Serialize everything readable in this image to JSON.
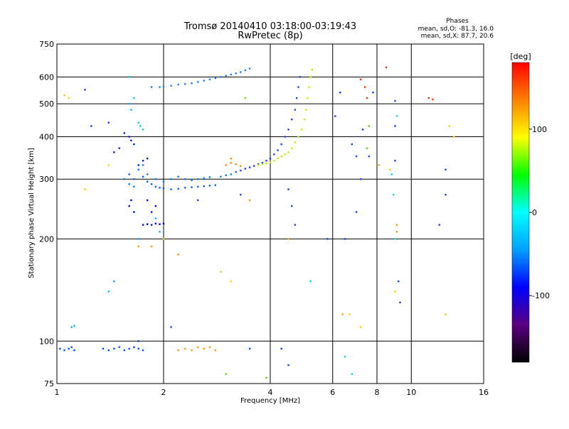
{
  "chart_data": {
    "type": "scatter",
    "title": "Tromsø 20140410 03:18:00-03:19:43",
    "subtitle": "RwPretec (8p)",
    "xlabel": "Frequency [MHz]",
    "ylabel": "Stationary phase Virtual Height [km]",
    "xscale": "log",
    "yscale": "log",
    "xlim": [
      1,
      16
    ],
    "ylim": [
      75,
      750
    ],
    "xticks": [
      1,
      2,
      4,
      6,
      8,
      10,
      16
    ],
    "yticks": [
      75,
      100,
      200,
      300,
      400,
      500,
      600,
      750
    ],
    "grid": true,
    "stats": {
      "title": "Phases",
      "line_o": "mean, sd,O: -81.3, 16.0",
      "line_x": "mean, sd,X:  87.7, 20.6"
    },
    "colorbar": {
      "label": "[deg]",
      "range": [
        -180,
        180
      ],
      "ticks": [
        100,
        0,
        -100
      ],
      "colors": [
        "#000000",
        "#5a0080",
        "#0000ff",
        "#00a0ff",
        "#00ffff",
        "#00ff00",
        "#ffff00",
        "#ff8000",
        "#ff0000"
      ]
    },
    "series": [
      {
        "color": "#0050ff",
        "points": [
          [
            1.02,
            95
          ],
          [
            1.05,
            94
          ],
          [
            1.08,
            95
          ],
          [
            1.1,
            96
          ],
          [
            1.12,
            94
          ],
          [
            1.35,
            95
          ],
          [
            1.4,
            94
          ],
          [
            1.45,
            95
          ],
          [
            1.5,
            96
          ],
          [
            1.55,
            94
          ],
          [
            1.6,
            95
          ],
          [
            1.65,
            96
          ],
          [
            1.7,
            95
          ],
          [
            1.75,
            94
          ]
        ]
      },
      {
        "color": "#ff9900",
        "points": [
          [
            2.2,
            94
          ],
          [
            2.3,
            95
          ],
          [
            2.4,
            94
          ],
          [
            2.5,
            96
          ],
          [
            2.6,
            95
          ],
          [
            2.7,
            96
          ],
          [
            2.8,
            94
          ]
        ]
      },
      {
        "color": "#0000ff",
        "points": [
          [
            1.85,
            220
          ],
          [
            1.9,
            222
          ],
          [
            1.95,
            221
          ],
          [
            2.0,
            222
          ],
          [
            1.75,
            220
          ],
          [
            1.8,
            221
          ],
          [
            1.6,
            250
          ],
          [
            1.62,
            260
          ],
          [
            1.65,
            240
          ],
          [
            1.8,
            260
          ],
          [
            1.85,
            240
          ],
          [
            1.9,
            250
          ]
        ]
      },
      {
        "color": "#0060ff",
        "points": [
          [
            1.6,
            310
          ],
          [
            1.65,
            300
          ],
          [
            1.7,
            320
          ],
          [
            1.75,
            305
          ],
          [
            1.8,
            295
          ],
          [
            1.85,
            290
          ],
          [
            1.9,
            285
          ],
          [
            1.95,
            283
          ],
          [
            2.0,
            282
          ],
          [
            2.1,
            280
          ],
          [
            2.2,
            281
          ],
          [
            2.3,
            283
          ],
          [
            2.4,
            284
          ],
          [
            2.5,
            285
          ],
          [
            2.6,
            286
          ],
          [
            2.7,
            287
          ],
          [
            2.8,
            288
          ]
        ]
      },
      {
        "color": "#0080ff",
        "points": [
          [
            1.55,
            300
          ],
          [
            1.6,
            290
          ],
          [
            1.65,
            285
          ],
          [
            1.7,
            320
          ],
          [
            1.75,
            330
          ],
          [
            1.8,
            310
          ],
          [
            1.9,
            300
          ],
          [
            2.0,
            295
          ],
          [
            2.1,
            300
          ],
          [
            2.2,
            305
          ],
          [
            2.3,
            300
          ],
          [
            2.4,
            298
          ],
          [
            2.5,
            300
          ],
          [
            2.6,
            302
          ],
          [
            2.7,
            304
          ],
          [
            2.9,
            305
          ],
          [
            3.0,
            308
          ],
          [
            3.1,
            310
          ]
        ]
      },
      {
        "color": "#2040ff",
        "points": [
          [
            3.2,
            315
          ],
          [
            3.3,
            318
          ],
          [
            3.4,
            322
          ],
          [
            3.5,
            325
          ],
          [
            3.6,
            328
          ],
          [
            3.7,
            332
          ],
          [
            3.8,
            335
          ],
          [
            3.9,
            340
          ],
          [
            4.0,
            345
          ],
          [
            4.1,
            355
          ],
          [
            4.2,
            365
          ],
          [
            4.3,
            380
          ],
          [
            4.4,
            400
          ],
          [
            4.5,
            420
          ],
          [
            4.6,
            450
          ],
          [
            4.7,
            480
          ],
          [
            4.75,
            520
          ],
          [
            4.8,
            560
          ],
          [
            4.85,
            600
          ]
        ]
      },
      {
        "color": "#c0ee00",
        "points": [
          [
            3.7,
            330
          ],
          [
            3.8,
            332
          ],
          [
            3.9,
            334
          ],
          [
            4.0,
            336
          ],
          [
            4.1,
            340
          ],
          [
            4.2,
            345
          ],
          [
            4.3,
            350
          ],
          [
            4.4,
            355
          ],
          [
            4.5,
            360
          ],
          [
            4.6,
            370
          ],
          [
            4.7,
            385
          ],
          [
            4.8,
            400
          ],
          [
            4.9,
            420
          ],
          [
            5.0,
            450
          ],
          [
            5.05,
            480
          ],
          [
            5.1,
            520
          ],
          [
            5.15,
            560
          ],
          [
            5.2,
            600
          ],
          [
            5.25,
            630
          ]
        ]
      },
      {
        "color": "#1a7fff",
        "points": [
          [
            1.85,
            560
          ],
          [
            1.95,
            560
          ],
          [
            2.0,
            562
          ],
          [
            2.1,
            565
          ],
          [
            2.2,
            570
          ],
          [
            2.3,
            572
          ],
          [
            2.4,
            575
          ],
          [
            2.5,
            580
          ],
          [
            2.6,
            585
          ],
          [
            2.7,
            590
          ],
          [
            2.8,
            595
          ],
          [
            2.9,
            600
          ],
          [
            3.0,
            605
          ],
          [
            3.1,
            610
          ],
          [
            3.2,
            615
          ],
          [
            3.3,
            620
          ],
          [
            3.4,
            628
          ],
          [
            3.5,
            635
          ]
        ]
      },
      {
        "color": "#00c0ff",
        "points": [
          [
            1.6,
            500
          ],
          [
            1.62,
            480
          ],
          [
            1.65,
            520
          ],
          [
            1.7,
            440
          ],
          [
            1.72,
            430
          ],
          [
            1.6,
            600
          ],
          [
            1.75,
            420
          ]
        ]
      },
      {
        "color": "#0020e0",
        "points": [
          [
            1.55,
            410
          ],
          [
            1.6,
            400
          ],
          [
            1.62,
            390
          ],
          [
            1.65,
            380
          ],
          [
            1.5,
            370
          ],
          [
            1.45,
            360
          ],
          [
            1.7,
            330
          ],
          [
            1.75,
            340
          ],
          [
            1.8,
            345
          ]
        ]
      },
      {
        "color": "#ff8800",
        "points": [
          [
            3.0,
            330
          ],
          [
            3.1,
            335
          ],
          [
            3.2,
            332
          ],
          [
            3.3,
            328
          ],
          [
            3.1,
            345
          ]
        ]
      },
      {
        "color": "#ff3300",
        "points": [
          [
            7.2,
            590
          ],
          [
            7.5,
            520
          ],
          [
            8.5,
            640
          ],
          [
            11.2,
            520
          ],
          [
            11.5,
            515
          ],
          [
            7.4,
            560
          ]
        ]
      },
      {
        "color": "#00b0ff",
        "points": [
          [
            1.1,
            110
          ],
          [
            1.12,
            111
          ],
          [
            1.4,
            140
          ],
          [
            1.45,
            150
          ],
          [
            1.9,
            230
          ],
          [
            2.0,
            200
          ],
          [
            1.95,
            210
          ],
          [
            1.7,
            200
          ]
        ]
      },
      {
        "color": "#1040ff",
        "points": [
          [
            1.2,
            550
          ],
          [
            1.25,
            430
          ],
          [
            1.4,
            440
          ],
          [
            4.5,
            280
          ],
          [
            4.6,
            250
          ],
          [
            4.7,
            220
          ],
          [
            4.3,
            95
          ],
          [
            4.5,
            85
          ],
          [
            6.1,
            460
          ],
          [
            6.3,
            540
          ],
          [
            6.8,
            380
          ],
          [
            7.0,
            350
          ],
          [
            7.3,
            420
          ],
          [
            7.8,
            540
          ],
          [
            9.0,
            510
          ],
          [
            9.0,
            430
          ],
          [
            9.0,
            340
          ],
          [
            9.2,
            150
          ],
          [
            9.3,
            130
          ],
          [
            12.5,
            320
          ],
          [
            12.5,
            270
          ],
          [
            12.0,
            220
          ],
          [
            5.8,
            200
          ],
          [
            6.5,
            200
          ],
          [
            7.0,
            240
          ],
          [
            7.2,
            300
          ],
          [
            7.6,
            350
          ],
          [
            3.3,
            270
          ],
          [
            2.5,
            260
          ],
          [
            3.5,
            95
          ],
          [
            1.7,
            100
          ],
          [
            2.1,
            110
          ]
        ]
      },
      {
        "color": "#00e0e0",
        "points": [
          [
            8.9,
            270
          ],
          [
            8.8,
            310
          ],
          [
            9.1,
            460
          ],
          [
            9.0,
            200
          ],
          [
            5.2,
            150
          ],
          [
            6.5,
            90
          ],
          [
            6.8,
            80
          ]
        ]
      },
      {
        "color": "#ffcc00",
        "points": [
          [
            1.4,
            330
          ],
          [
            1.05,
            530
          ],
          [
            1.08,
            520
          ],
          [
            1.2,
            280
          ],
          [
            2.0,
            200
          ],
          [
            2.9,
            160
          ],
          [
            3.1,
            150
          ],
          [
            6.7,
            120
          ],
          [
            7.2,
            110
          ],
          [
            9.0,
            140
          ],
          [
            12.5,
            120
          ],
          [
            12.8,
            430
          ],
          [
            13.2,
            400
          ],
          [
            8.7,
            320
          ]
        ]
      },
      {
        "color": "#ff9900",
        "points": [
          [
            1.7,
            190
          ],
          [
            1.85,
            190
          ],
          [
            2.2,
            180
          ],
          [
            4.5,
            200
          ],
          [
            3.5,
            260
          ],
          [
            6.4,
            120
          ],
          [
            8.1,
            330
          ],
          [
            9.1,
            220
          ],
          [
            9.1,
            210
          ]
        ]
      },
      {
        "color": "#55dd00",
        "points": [
          [
            3.0,
            80
          ],
          [
            3.9,
            78
          ],
          [
            3.4,
            520
          ],
          [
            7.6,
            430
          ],
          [
            7.5,
            370
          ]
        ]
      }
    ]
  }
}
